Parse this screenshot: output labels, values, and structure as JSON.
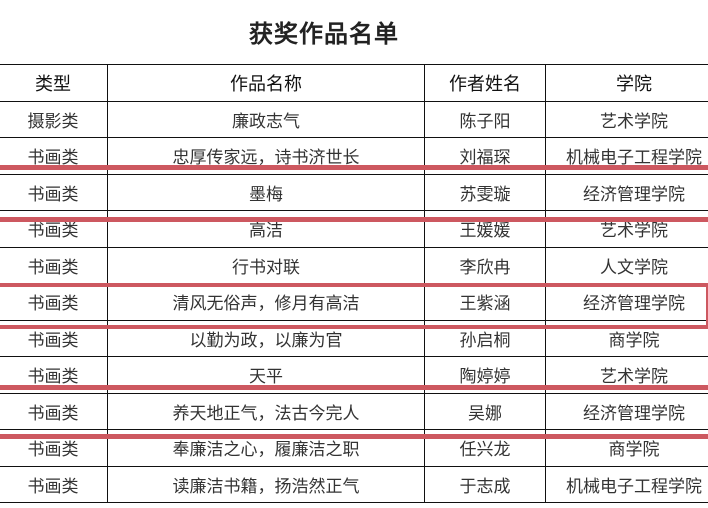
{
  "title": "获奖作品名单",
  "headers": [
    "类型",
    "作品名称",
    "作者姓名",
    "学院"
  ],
  "rows": [
    [
      "摄影类",
      "廉政志气",
      "陈子阳",
      "艺术学院"
    ],
    [
      "书画类",
      "忠厚传家远，诗书济世长",
      "刘福琛",
      "机械电子工程学院"
    ],
    [
      "书画类",
      "墨梅",
      "苏雯璇",
      "经济管理学院"
    ],
    [
      "书画类",
      "高洁",
      "王媛媛",
      "艺术学院"
    ],
    [
      "书画类",
      "行书对联",
      "李欣冉",
      "人文学院"
    ],
    [
      "书画类",
      "清风无俗声，修月有高洁",
      "王紫涵",
      "经济管理学院"
    ],
    [
      "书画类",
      "以勤为政，以廉为官",
      "孙启桐",
      "商学院"
    ],
    [
      "书画类",
      "天平",
      "陶婷婷",
      "艺术学院"
    ],
    [
      "书画类",
      "养天地正气，法古今完人",
      "吴娜",
      "经济管理学院"
    ],
    [
      "书画类",
      "奉廉洁之心，履廉洁之职",
      "任兴龙",
      "商学院"
    ],
    [
      "书画类",
      "读廉洁书籍，扬浩然正气",
      "于志成",
      "机械电子工程学院"
    ]
  ],
  "annotation_color": "#cd5860"
}
